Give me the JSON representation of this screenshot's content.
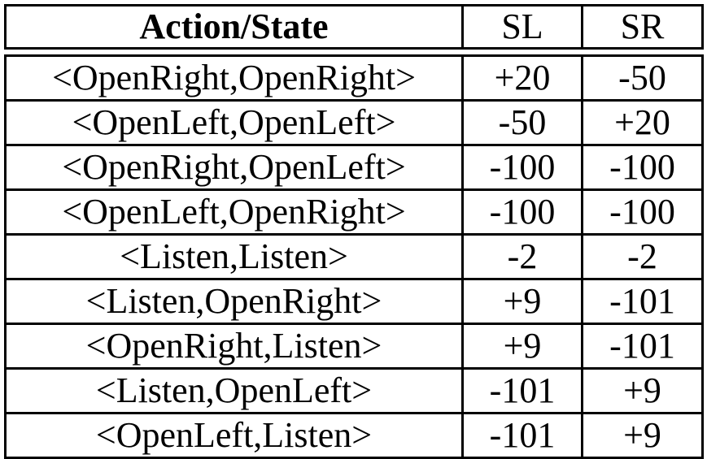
{
  "table": {
    "headers": [
      "Action/State",
      "SL",
      "SR"
    ],
    "rows": [
      {
        "action": "<OpenRight,OpenRight>",
        "sl": "+20",
        "sr": "-50"
      },
      {
        "action": "<OpenLeft,OpenLeft>",
        "sl": "-50",
        "sr": "+20"
      },
      {
        "action": "<OpenRight,OpenLeft>",
        "sl": "-100",
        "sr": "-100"
      },
      {
        "action": "<OpenLeft,OpenRight>",
        "sl": "-100",
        "sr": "-100"
      },
      {
        "action": "<Listen,Listen>",
        "sl": "-2",
        "sr": "-2"
      },
      {
        "action": "<Listen,OpenRight>",
        "sl": "+9",
        "sr": "-101"
      },
      {
        "action": "<OpenRight,Listen>",
        "sl": "+9",
        "sr": "-101"
      },
      {
        "action": "<Listen,OpenLeft>",
        "sl": "-101",
        "sr": "+9"
      },
      {
        "action": "<OpenLeft,Listen>",
        "sl": "-101",
        "sr": "+9"
      }
    ]
  }
}
